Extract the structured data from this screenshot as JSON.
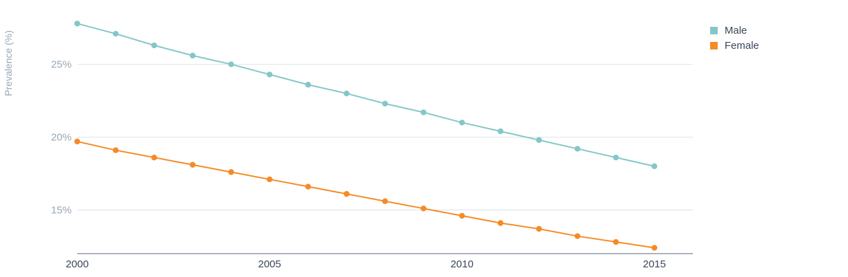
{
  "chart_data": {
    "type": "line",
    "ylabel": "Prevalence (%)",
    "xlabel": "",
    "x": [
      2000,
      2001,
      2002,
      2003,
      2004,
      2005,
      2006,
      2007,
      2008,
      2009,
      2010,
      2011,
      2012,
      2013,
      2014,
      2015
    ],
    "xticks": [
      2000,
      2005,
      2010,
      2015
    ],
    "xtick_labels": [
      "2000",
      "2005",
      "2010",
      "2015"
    ],
    "yticks": [
      15,
      20,
      25
    ],
    "ytick_labels": [
      "15%",
      "20%",
      "25%"
    ],
    "xlim": [
      2000,
      2016
    ],
    "ylim": [
      12,
      28
    ],
    "grid": true,
    "legend_position": "top-right",
    "series": [
      {
        "name": "Male",
        "color": "#85c7c7",
        "values": [
          27.8,
          27.1,
          26.3,
          25.6,
          25.0,
          24.3,
          23.6,
          23.0,
          22.3,
          21.7,
          21.0,
          20.4,
          19.8,
          19.2,
          18.6,
          18.0
        ]
      },
      {
        "name": "Female",
        "color": "#f58b27",
        "values": [
          19.7,
          19.1,
          18.6,
          18.1,
          17.6,
          17.1,
          16.6,
          16.1,
          15.6,
          15.1,
          14.6,
          14.1,
          13.7,
          13.2,
          12.8,
          12.4
        ]
      }
    ]
  }
}
